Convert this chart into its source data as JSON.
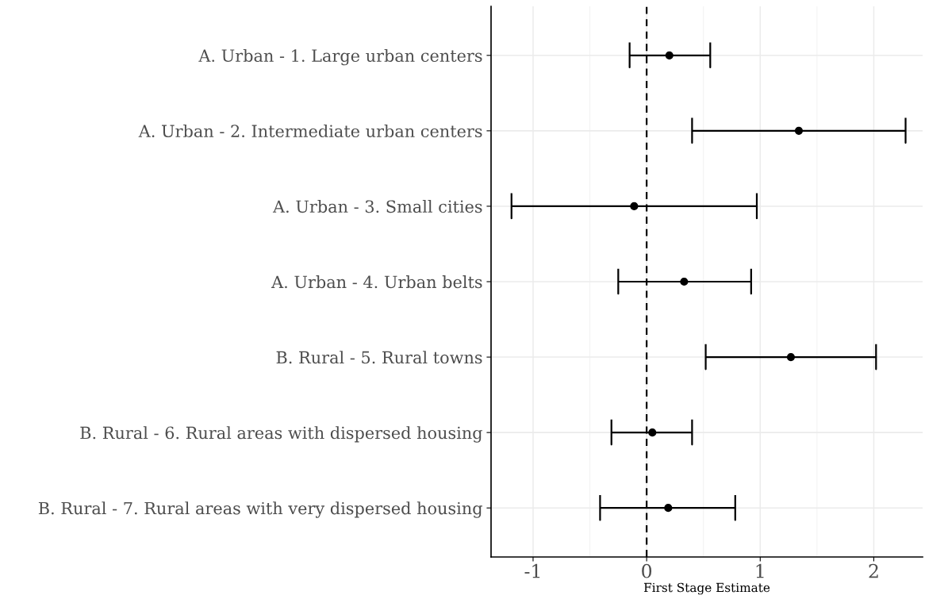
{
  "chart_data": {
    "type": "scatter",
    "orientation": "horizontal",
    "xlabel": "First Stage Estimate",
    "categories": [
      "A. Urban - 1. Large urban centers",
      "A. Urban - 2. Intermediate urban centers",
      "A. Urban - 3. Small cities",
      "A. Urban - 4. Urban belts",
      "B. Rural - 5. Rural towns",
      "B. Rural - 6. Rural areas with dispersed housing",
      "B. Rural - 7. Rural areas with very dispersed housing"
    ],
    "values": [
      0.2,
      1.34,
      -0.11,
      0.33,
      1.27,
      0.05,
      0.19
    ],
    "errors": [
      [
        -0.15,
        0.56
      ],
      [
        0.4,
        2.28
      ],
      [
        -1.19,
        0.97
      ],
      [
        -0.25,
        0.92
      ],
      [
        0.52,
        2.02
      ],
      [
        -0.31,
        0.4
      ],
      [
        -0.41,
        0.78
      ]
    ],
    "color": "#000000",
    "xlim": [
      -1.37,
      2.43
    ],
    "xticks": [
      -1,
      0,
      1,
      2
    ],
    "ref_lines": [
      {
        "axis": "x",
        "value": 0,
        "line_style": "dashed",
        "color": "#000000"
      }
    ],
    "grid": true,
    "marker": "circle"
  }
}
